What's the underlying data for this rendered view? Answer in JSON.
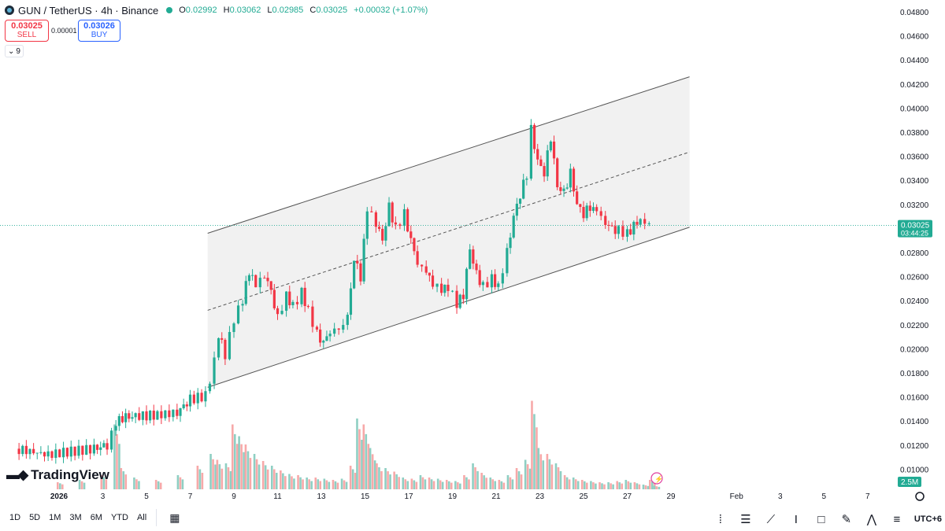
{
  "header": {
    "title": "GUN / TetherUS · 4h · Binance",
    "open_label": "O",
    "open": "0.02992",
    "high_label": "H",
    "high": "0.03062",
    "low_label": "L",
    "low": "0.02985",
    "close_label": "C",
    "close": "0.03025",
    "change": "+0.00032 (+1.07%)"
  },
  "trade": {
    "sell_price": "0.03025",
    "sell_label": "SELL",
    "spread": "0.00001",
    "buy_price": "0.03026",
    "buy_label": "BUY"
  },
  "indicators_count": "9",
  "logo_text": "TradingView",
  "price_label": "0.03025",
  "countdown": "03:44:25",
  "volume_label": "2.5M",
  "timeframes": [
    "1D",
    "5D",
    "1M",
    "3M",
    "6M",
    "YTD",
    "All"
  ],
  "timezone": "UTC+6",
  "colors": {
    "up": "#22ab94",
    "down": "#f23645",
    "up_vol": "#8fcfc3",
    "down_vol": "#f7a9a9",
    "channel": "#eeeeee"
  },
  "chart_data": {
    "type": "candlestick",
    "y_ticks": [
      "0.04800",
      "0.04600",
      "0.04400",
      "0.04200",
      "0.04000",
      "0.03800",
      "0.03600",
      "0.03400",
      "0.03200",
      "0.03000",
      "0.02800",
      "0.02600",
      "0.02400",
      "0.02200",
      "0.02000",
      "0.01800",
      "0.01600",
      "0.01400",
      "0.01200",
      "0.01000"
    ],
    "ylim": [
      0.0093,
      0.0492
    ],
    "x_ticks": [
      "2026",
      "3",
      "5",
      "7",
      "9",
      "11",
      "13",
      "15",
      "17",
      "19",
      "21",
      "23",
      "25",
      "27",
      "29",
      "Feb",
      "3",
      "5",
      "7"
    ],
    "x_tick_days": [
      1,
      3,
      5,
      7,
      9,
      11,
      13,
      15,
      17,
      19,
      21,
      23,
      25,
      27,
      29,
      32,
      34,
      36,
      38
    ],
    "last_price": 0.03025,
    "channel": {
      "start_day": 7.8,
      "end_day": 29.85,
      "lower": [
        0.0168,
        0.0301
      ],
      "upper": [
        0.0296,
        0.0426
      ]
    },
    "ohlc_points": [
      [
        -1,
        0.0117
      ],
      [
        0.5,
        0.0112
      ],
      [
        1.2,
        0.0114
      ],
      [
        2.6,
        0.0117
      ],
      [
        3.2,
        0.012
      ],
      [
        3.6,
        0.0138
      ],
      [
        3.9,
        0.0143
      ],
      [
        4.5,
        0.0144
      ],
      [
        5.5,
        0.0145
      ],
      [
        6.4,
        0.0147
      ],
      [
        7.0,
        0.0158
      ],
      [
        7.7,
        0.0161
      ],
      [
        8.1,
        0.0189
      ],
      [
        8.3,
        0.0212
      ],
      [
        8.6,
        0.0195
      ],
      [
        9.0,
        0.0225
      ],
      [
        9.4,
        0.024
      ],
      [
        9.7,
        0.0265
      ],
      [
        10.0,
        0.0252
      ],
      [
        10.4,
        0.0262
      ],
      [
        10.7,
        0.0248
      ],
      [
        11.0,
        0.0225
      ],
      [
        11.4,
        0.0245
      ],
      [
        11.7,
        0.0235
      ],
      [
        12.1,
        0.0247
      ],
      [
        12.4,
        0.0232
      ],
      [
        12.8,
        0.0212
      ],
      [
        13.1,
        0.0205
      ],
      [
        13.4,
        0.0215
      ],
      [
        13.8,
        0.0216
      ],
      [
        14.2,
        0.0226
      ],
      [
        14.5,
        0.0275
      ],
      [
        14.8,
        0.026
      ],
      [
        15.1,
        0.0316
      ],
      [
        15.5,
        0.0305
      ],
      [
        15.8,
        0.029
      ],
      [
        16.1,
        0.0318
      ],
      [
        16.4,
        0.03
      ],
      [
        16.8,
        0.0312
      ],
      [
        17.1,
        0.029
      ],
      [
        17.4,
        0.0272
      ],
      [
        17.8,
        0.0263
      ],
      [
        18.1,
        0.0255
      ],
      [
        18.5,
        0.0248
      ],
      [
        18.8,
        0.0252
      ],
      [
        19.2,
        0.0237
      ],
      [
        19.5,
        0.0245
      ],
      [
        19.8,
        0.0283
      ],
      [
        20.1,
        0.0262
      ],
      [
        20.4,
        0.0252
      ],
      [
        20.8,
        0.0258
      ],
      [
        21.1,
        0.0252
      ],
      [
        21.5,
        0.028
      ],
      [
        21.8,
        0.031
      ],
      [
        22.1,
        0.0328
      ],
      [
        22.4,
        0.0345
      ],
      [
        22.6,
        0.0382
      ],
      [
        22.9,
        0.0356
      ],
      [
        23.2,
        0.0346
      ],
      [
        23.5,
        0.0376
      ],
      [
        23.8,
        0.0335
      ],
      [
        24.1,
        0.033
      ],
      [
        24.4,
        0.0346
      ],
      [
        24.7,
        0.032
      ],
      [
        25.0,
        0.0312
      ],
      [
        25.3,
        0.0318
      ],
      [
        25.6,
        0.0314
      ],
      [
        26.0,
        0.0305
      ],
      [
        26.3,
        0.03
      ],
      [
        26.6,
        0.0298
      ],
      [
        27.0,
        0.0296
      ],
      [
        27.3,
        0.0302
      ],
      [
        27.6,
        0.0308
      ],
      [
        28.0,
        0.0302
      ]
    ],
    "volume_points": [
      [
        1,
        0.06
      ],
      [
        2,
        0.08
      ],
      [
        3,
        0.12
      ],
      [
        3.6,
        0.55
      ],
      [
        3.9,
        0.18
      ],
      [
        4.5,
        0.1
      ],
      [
        5.5,
        0.08
      ],
      [
        6.5,
        0.12
      ],
      [
        7.4,
        0.2
      ],
      [
        8.0,
        0.3
      ],
      [
        8.3,
        0.25
      ],
      [
        8.7,
        0.22
      ],
      [
        9.0,
        0.55
      ],
      [
        9.3,
        0.45
      ],
      [
        9.6,
        0.38
      ],
      [
        10.0,
        0.3
      ],
      [
        10.4,
        0.24
      ],
      [
        10.8,
        0.2
      ],
      [
        11.2,
        0.16
      ],
      [
        11.6,
        0.13
      ],
      [
        12.0,
        0.12
      ],
      [
        12.4,
        0.1
      ],
      [
        12.8,
        0.1
      ],
      [
        13.2,
        0.09
      ],
      [
        13.6,
        0.08
      ],
      [
        14.0,
        0.09
      ],
      [
        14.4,
        0.2
      ],
      [
        14.7,
        0.6
      ],
      [
        15.0,
        0.55
      ],
      [
        15.3,
        0.35
      ],
      [
        15.6,
        0.22
      ],
      [
        16.0,
        0.18
      ],
      [
        16.4,
        0.15
      ],
      [
        16.8,
        0.1
      ],
      [
        17.2,
        0.09
      ],
      [
        17.6,
        0.12
      ],
      [
        18.0,
        0.1
      ],
      [
        18.4,
        0.09
      ],
      [
        18.8,
        0.08
      ],
      [
        19.2,
        0.07
      ],
      [
        19.6,
        0.12
      ],
      [
        20.0,
        0.22
      ],
      [
        20.4,
        0.14
      ],
      [
        20.8,
        0.1
      ],
      [
        21.2,
        0.08
      ],
      [
        21.6,
        0.12
      ],
      [
        22.0,
        0.18
      ],
      [
        22.4,
        0.25
      ],
      [
        22.7,
        0.75
      ],
      [
        23.0,
        0.35
      ],
      [
        23.4,
        0.3
      ],
      [
        23.8,
        0.22
      ],
      [
        24.2,
        0.12
      ],
      [
        24.6,
        0.1
      ],
      [
        25.0,
        0.08
      ],
      [
        25.4,
        0.07
      ],
      [
        25.8,
        0.06
      ],
      [
        26.2,
        0.06
      ],
      [
        26.6,
        0.07
      ],
      [
        27.0,
        0.08
      ],
      [
        27.4,
        0.06
      ],
      [
        27.8,
        0.04
      ],
      [
        28.1,
        0.08
      ],
      [
        28.3,
        0.03
      ]
    ]
  }
}
